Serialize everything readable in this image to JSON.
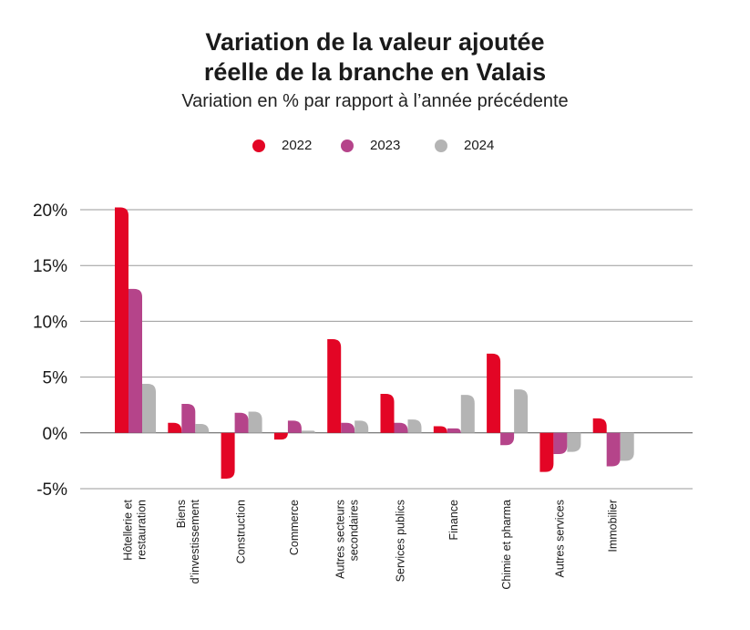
{
  "colors": {
    "2022": "#e30525",
    "2023": "#b5448a",
    "2024": "#b4b4b4",
    "grid": "#9a9a9a",
    "axis": "#555555"
  },
  "chart_data": {
    "type": "bar",
    "title_line1": "Variation de la valeur ajoutée",
    "title_line2": "réelle de la branche en Valais",
    "subtitle": "Variation en % par rapport à l’année précédente",
    "xlabel": "",
    "ylabel": "",
    "ylim": [
      -5,
      20
    ],
    "yticks": [
      {
        "value": 20,
        "label": "20%"
      },
      {
        "value": 15,
        "label": "15%"
      },
      {
        "value": 10,
        "label": "10%"
      },
      {
        "value": 5,
        "label": "5%"
      },
      {
        "value": 0,
        "label": "0%"
      },
      {
        "value": -5,
        "label": "-5%"
      }
    ],
    "grid": true,
    "legend_position": "top-center",
    "categories": [
      [
        "Hôtellerie et",
        "restauration"
      ],
      [
        "Biens",
        "d’investissement"
      ],
      [
        "Construction"
      ],
      [
        "Commerce"
      ],
      [
        "Autres secteurs",
        "secondaires"
      ],
      [
        "Services publics"
      ],
      [
        "Finance"
      ],
      [
        "Chimie et pharma"
      ],
      [
        "Autres services"
      ],
      [
        "Immobilier"
      ]
    ],
    "series": [
      {
        "name": "2022",
        "values": [
          20.2,
          0.9,
          -4.1,
          -0.6,
          8.4,
          3.5,
          0.6,
          7.1,
          -3.5,
          1.3
        ]
      },
      {
        "name": "2023",
        "values": [
          12.9,
          2.6,
          1.8,
          1.1,
          0.9,
          0.9,
          0.4,
          -1.1,
          -1.9,
          -3.0
        ]
      },
      {
        "name": "2024",
        "values": [
          4.4,
          0.8,
          1.9,
          0.2,
          1.1,
          1.2,
          3.4,
          3.9,
          -1.7,
          -2.5
        ]
      }
    ]
  }
}
